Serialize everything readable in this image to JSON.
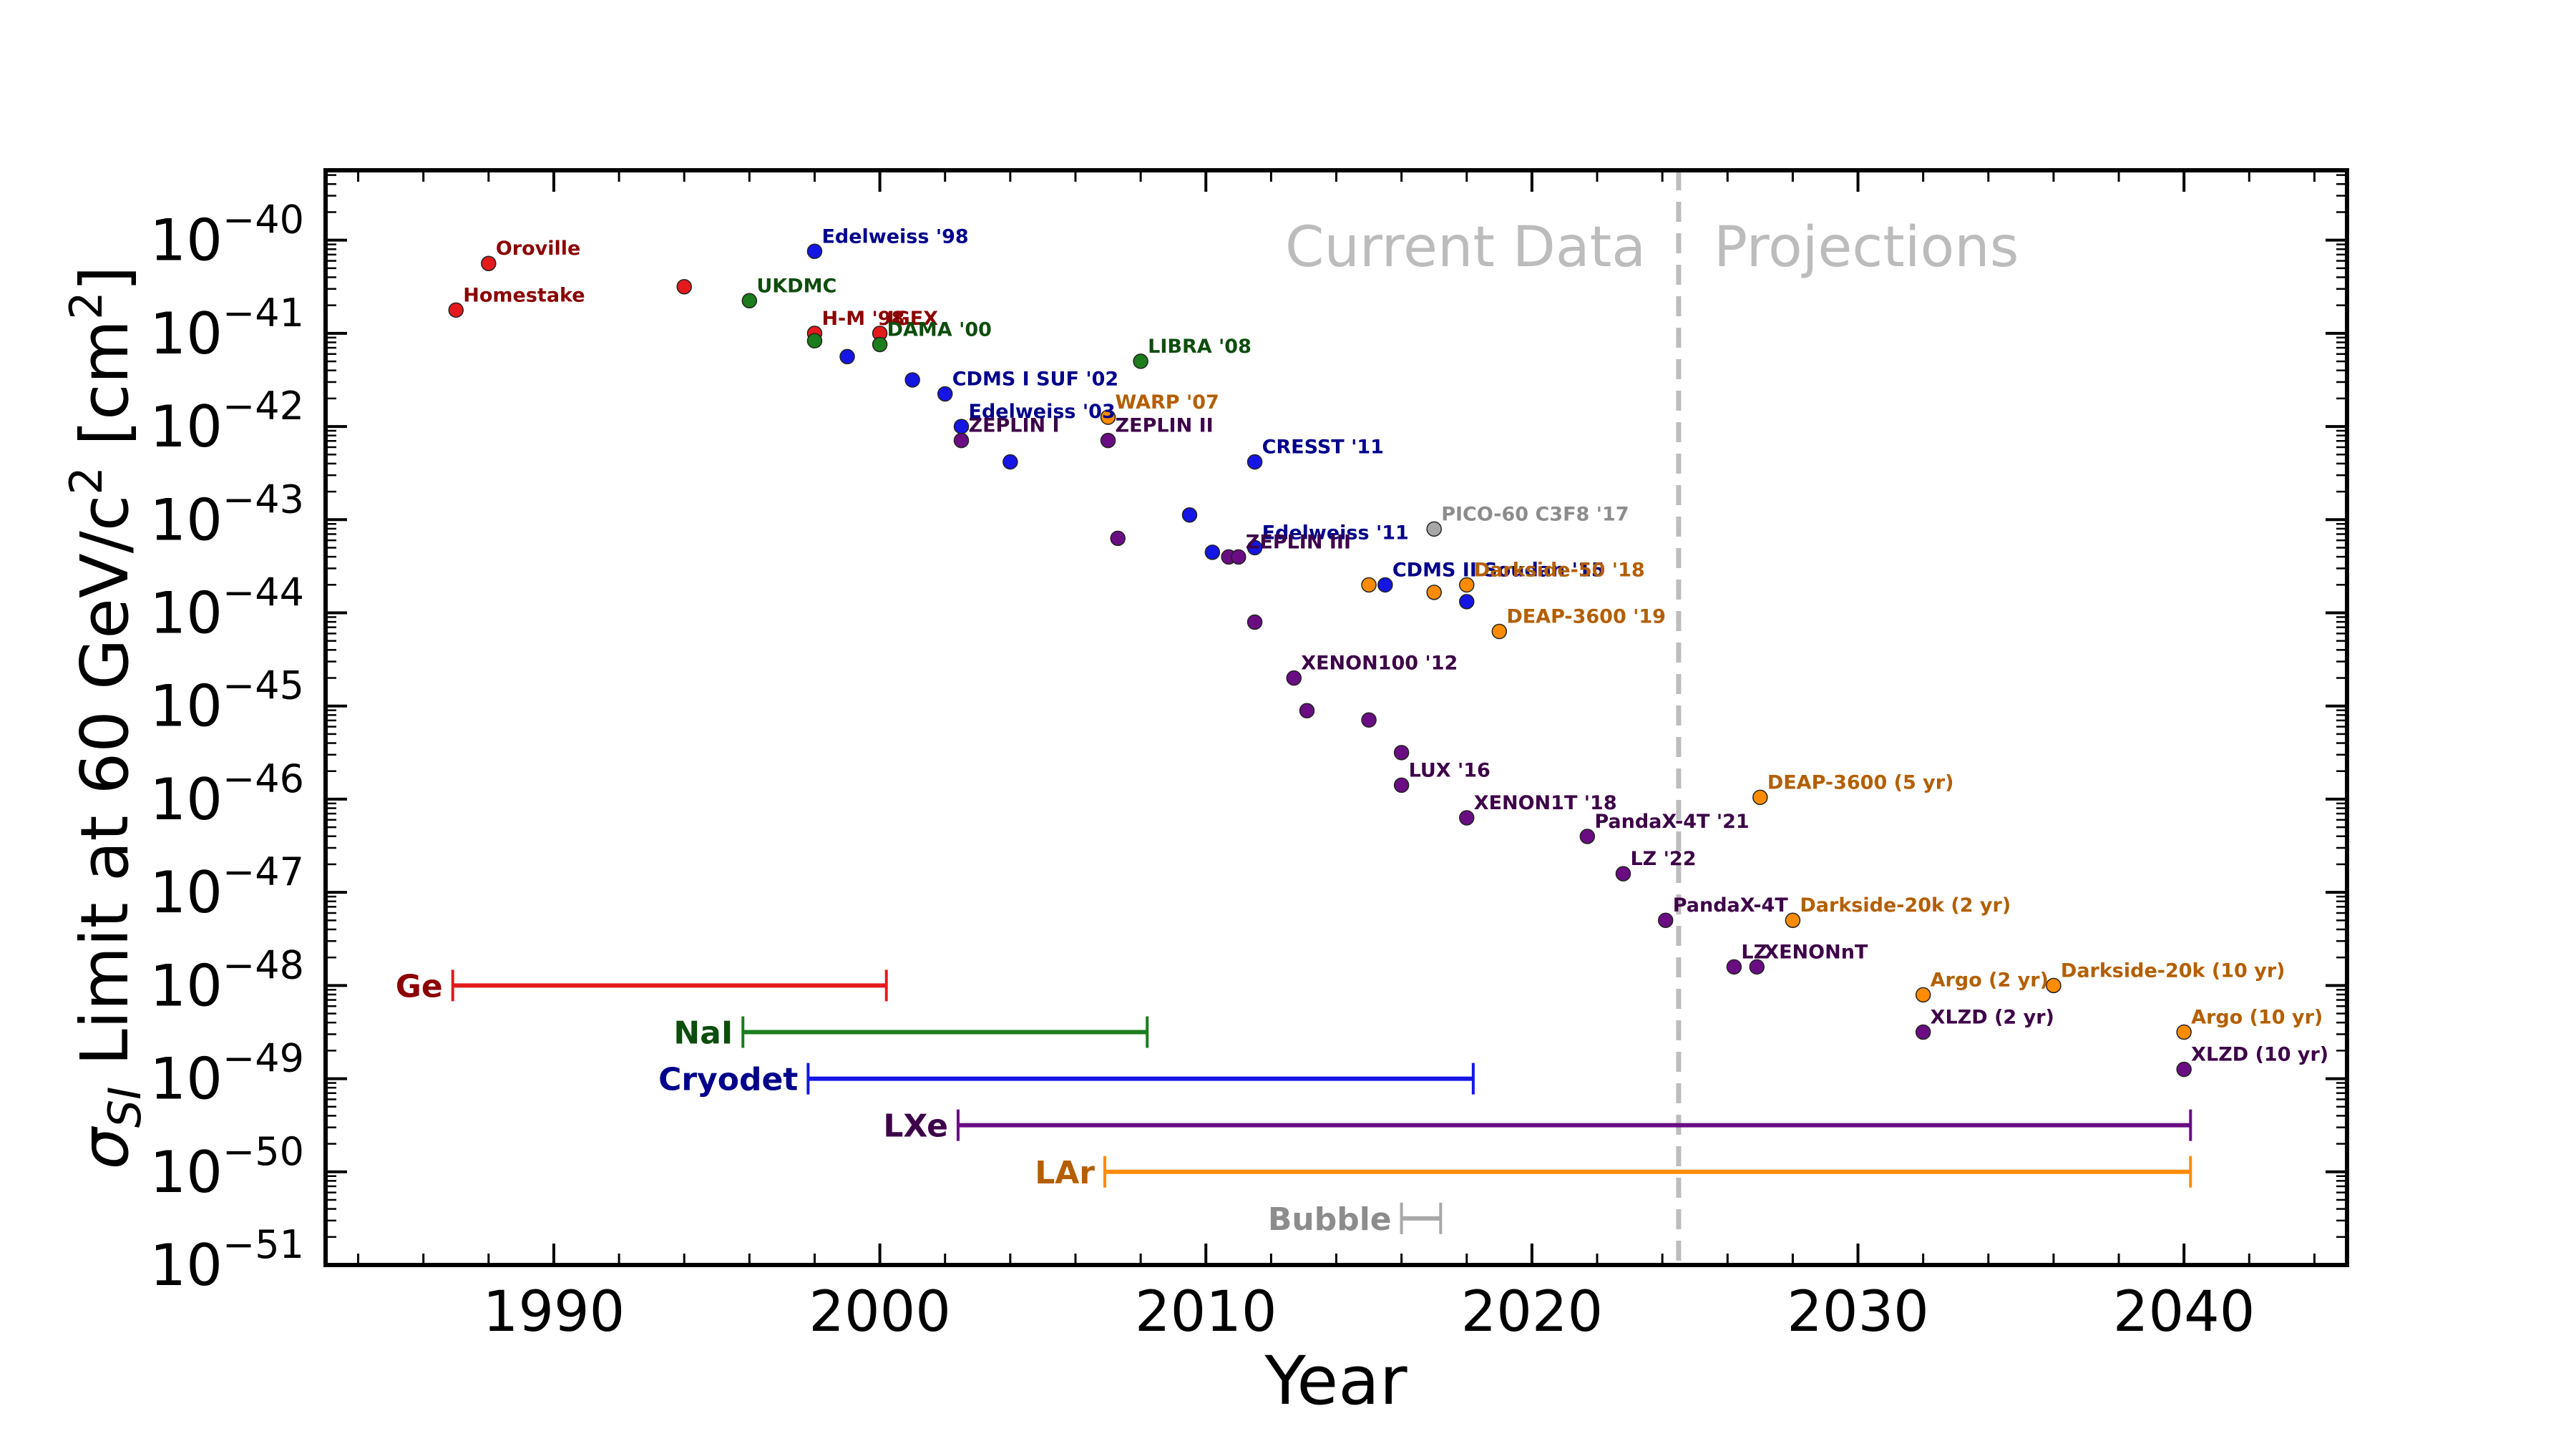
{
  "chart_data": {
    "type": "scatter",
    "xlabel": "Year",
    "ylabel": "σSI Limit at 60 GeV/c² [cm²]",
    "xlim": [
      1983,
      2045
    ],
    "ylim": [
      -51,
      -39.25
    ],
    "y_scale": "log",
    "x_ticks": [
      1990,
      2000,
      2010,
      2020,
      2030,
      2040
    ],
    "y_ticks": [
      {
        "exp": -40,
        "label": "10−40"
      },
      {
        "exp": -41,
        "label": "10−41"
      },
      {
        "exp": -42,
        "label": "10−42"
      },
      {
        "exp": -43,
        "label": "10−43"
      },
      {
        "exp": -44,
        "label": "10−44"
      },
      {
        "exp": -45,
        "label": "10−45"
      },
      {
        "exp": -46,
        "label": "10−46"
      },
      {
        "exp": -47,
        "label": "10−47"
      },
      {
        "exp": -48,
        "label": "10−48"
      },
      {
        "exp": -49,
        "label": "10−49"
      },
      {
        "exp": -50,
        "label": "10−50"
      },
      {
        "exp": -51,
        "label": "10−51"
      }
    ],
    "divider_year": 2024.5,
    "regions": {
      "left": "Current Data",
      "right": "Projections"
    },
    "colors": {
      "Ge": "#e41a1c",
      "NaI": "#1b7d1b",
      "Cryodet": "#1515e6",
      "LXe": "#6a0d83",
      "LAr": "#ff8c00",
      "Bubble": "#a8a8a8"
    },
    "label_colors": {
      "Ge": "#8b0000",
      "NaI": "#0d4d0d",
      "Cryodet": "#00008b",
      "LXe": "#3d0048",
      "LAr": "#b35f00",
      "Bubble": "#8c8c8c"
    },
    "series": [
      {
        "tech": "Ge",
        "points": [
          {
            "x": 1987,
            "y": -40.75,
            "label": "Homestake"
          },
          {
            "x": 1988,
            "y": -40.25,
            "label": "Oroville"
          },
          {
            "x": 1994,
            "y": -40.5,
            "label": ""
          },
          {
            "x": 1998,
            "y": -41.0,
            "label": "H-M '98"
          },
          {
            "x": 2000,
            "y": -41.0,
            "label": "IGEX"
          }
        ]
      },
      {
        "tech": "NaI",
        "points": [
          {
            "x": 1996,
            "y": -40.65,
            "label": "UKDMC"
          },
          {
            "x": 1998,
            "y": -41.08,
            "label": ""
          },
          {
            "x": 2000,
            "y": -41.12,
            "label": "DAMA '00"
          },
          {
            "x": 2008,
            "y": -41.3,
            "label": "LIBRA '08"
          }
        ]
      },
      {
        "tech": "Cryodet",
        "points": [
          {
            "x": 1998,
            "y": -40.12,
            "label": "Edelweiss '98"
          },
          {
            "x": 1999,
            "y": -41.25,
            "label": ""
          },
          {
            "x": 2001,
            "y": -41.5,
            "label": ""
          },
          {
            "x": 2002,
            "y": -41.65,
            "label": "CDMS I SUF '02"
          },
          {
            "x": 2002.5,
            "y": -42.0,
            "label": "Edelweiss '03"
          },
          {
            "x": 2004,
            "y": -42.38,
            "label": ""
          },
          {
            "x": 2009.5,
            "y": -42.95,
            "label": ""
          },
          {
            "x": 2010.2,
            "y": -43.35,
            "label": ""
          },
          {
            "x": 2011.5,
            "y": -42.38,
            "label": "CRESST '11"
          },
          {
            "x": 2011.5,
            "y": -43.3,
            "label": "Edelweiss '11"
          },
          {
            "x": 2015.5,
            "y": -43.7,
            "label": "CDMS II Soudan '15"
          },
          {
            "x": 2018,
            "y": -43.88,
            "label": ""
          }
        ]
      },
      {
        "tech": "LXe",
        "points": [
          {
            "x": 2002.5,
            "y": -42.15,
            "label": "ZEPLIN I"
          },
          {
            "x": 2007,
            "y": -42.15,
            "label": "ZEPLIN II"
          },
          {
            "x": 2007.3,
            "y": -43.2,
            "label": ""
          },
          {
            "x": 2010.7,
            "y": -43.4,
            "label": ""
          },
          {
            "x": 2011,
            "y": -43.4,
            "label": "ZEPLIN III"
          },
          {
            "x": 2011.5,
            "y": -44.1,
            "label": ""
          },
          {
            "x": 2012.7,
            "y": -44.7,
            "label": "XENON100 '12"
          },
          {
            "x": 2013.1,
            "y": -45.05,
            "label": ""
          },
          {
            "x": 2015,
            "y": -45.15,
            "label": ""
          },
          {
            "x": 2016,
            "y": -45.5,
            "label": ""
          },
          {
            "x": 2016,
            "y": -45.85,
            "label": "LUX '16"
          },
          {
            "x": 2018,
            "y": -46.2,
            "label": "XENON1T '18"
          },
          {
            "x": 2021.7,
            "y": -46.4,
            "label": "PandaX-4T '21"
          },
          {
            "x": 2022.8,
            "y": -46.8,
            "label": "LZ '22"
          },
          {
            "x": 2024.1,
            "y": -47.3,
            "label": "PandaX-4T"
          },
          {
            "x": 2026.2,
            "y": -47.8,
            "label": "LZ"
          },
          {
            "x": 2026.9,
            "y": -47.8,
            "label": "XENONnT"
          },
          {
            "x": 2032,
            "y": -48.5,
            "label": "XLZD (2 yr)"
          },
          {
            "x": 2040,
            "y": -48.9,
            "label": "XLZD (10 yr)"
          }
        ]
      },
      {
        "tech": "LAr",
        "points": [
          {
            "x": 2007,
            "y": -41.9,
            "label": "WARP '07"
          },
          {
            "x": 2015,
            "y": -43.7,
            "label": ""
          },
          {
            "x": 2017,
            "y": -43.78,
            "label": ""
          },
          {
            "x": 2018,
            "y": -43.7,
            "label": "Darkside-50 '18"
          },
          {
            "x": 2019,
            "y": -44.2,
            "label": "DEAP-3600 '19"
          },
          {
            "x": 2027,
            "y": -45.98,
            "label": "DEAP-3600 (5 yr)"
          },
          {
            "x": 2028,
            "y": -47.3,
            "label": "Darkside-20k (2 yr)"
          },
          {
            "x": 2032,
            "y": -48.1,
            "label": "Argo (2 yr)"
          },
          {
            "x": 2036,
            "y": -48.0,
            "label": "Darkside-20k (10 yr)"
          },
          {
            "x": 2040,
            "y": -48.5,
            "label": "Argo (10 yr)"
          }
        ]
      },
      {
        "tech": "Bubble",
        "points": [
          {
            "x": 2017,
            "y": -43.1,
            "label": "PICO-60 C3F8 '17"
          }
        ]
      }
    ],
    "ranges": [
      {
        "tech": "Ge",
        "label": "Ge",
        "start": 1986.9,
        "end": 2000.2,
        "y": -48.0
      },
      {
        "tech": "NaI",
        "label": "NaI",
        "start": 1995.8,
        "end": 2008.2,
        "y": -48.5
      },
      {
        "tech": "Cryodet",
        "label": "Cryodet",
        "start": 1997.8,
        "end": 2018.2,
        "y": -49.0
      },
      {
        "tech": "LXe",
        "label": "LXe",
        "start": 2002.4,
        "end": 2040.2,
        "y": -49.5
      },
      {
        "tech": "LAr",
        "label": "LAr",
        "start": 2006.9,
        "end": 2040.2,
        "y": -50.0
      },
      {
        "tech": "Bubble",
        "label": "Bubble",
        "start": 2016.0,
        "end": 2017.2,
        "y": -50.5
      }
    ]
  }
}
